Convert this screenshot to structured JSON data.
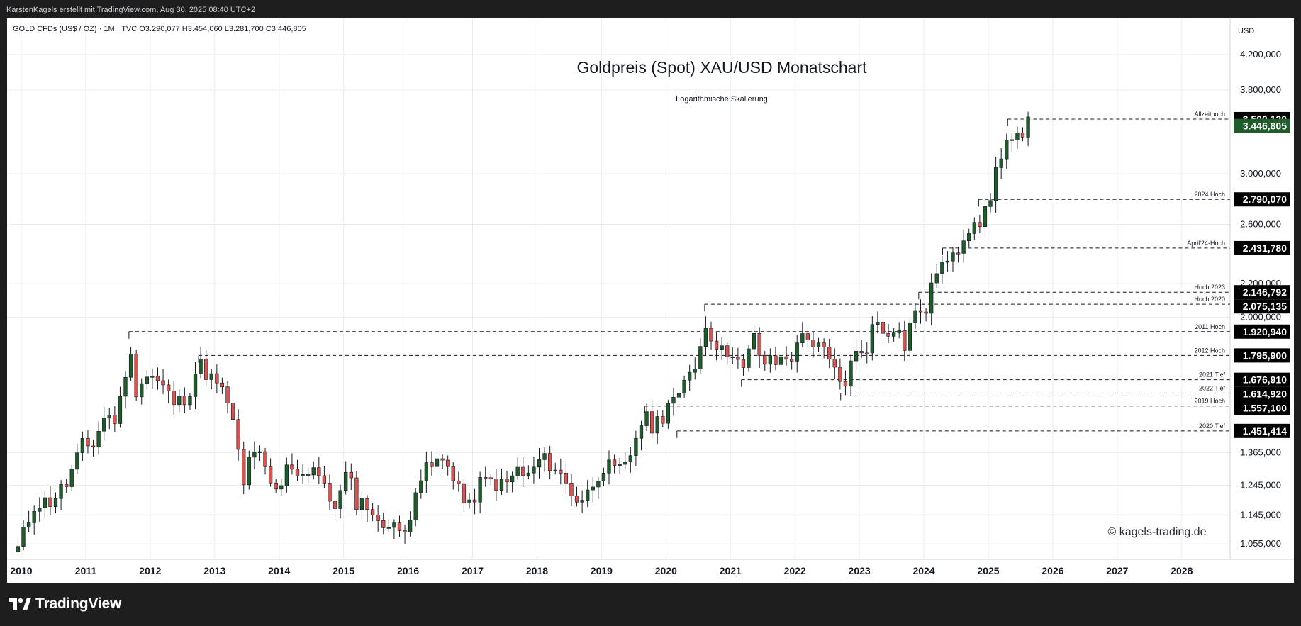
{
  "header": {
    "attribution": "KarstenKagels erstellt mit TradingView.com, Aug 30, 2025 08:40 UTC+2",
    "symbol_info": "GOLD CFDs (US$ / OZ) · 1M · TVC  O3.290,077  H3.454,060  L3.281,700  C3.446,805"
  },
  "footer": {
    "brand": "TradingView"
  },
  "colors": {
    "up": "#1e5c2a",
    "down": "#d9534f",
    "wick": "#131722",
    "grid": "#ececec",
    "current_price_bg": "#1e5c2a",
    "label_bg": "#000000"
  },
  "chart_data": {
    "type": "candlestick",
    "title": "Goldpreis (Spot) XAU/USD Monatschart",
    "subtitle": "Logarithmische Skalierung",
    "watermark": "© kagels-trading.de",
    "currency_label": "USD",
    "y_scale": "log",
    "ylim": [
      1010,
      4650
    ],
    "xlim": [
      2009.78,
      2028.75
    ],
    "x_ticks": [
      "2010",
      "2011",
      "2012",
      "2013",
      "2014",
      "2015",
      "2016",
      "2017",
      "2018",
      "2019",
      "2020",
      "2021",
      "2022",
      "2023",
      "2024",
      "2025",
      "2026",
      "2027",
      "2028"
    ],
    "y_ticks": [
      "4.200,000",
      "3.800,000",
      "3.000,000",
      "2.600,000",
      "2.200,000",
      "2.000,000",
      "1.365,000",
      "1.245,000",
      "1.145,000",
      "1.055,000"
    ],
    "levels": [
      {
        "name": "Allzeithoch",
        "value": 3500.12,
        "label": "3.500,120",
        "start": 2025.3
      },
      {
        "name": "2024 Hoch",
        "value": 2790.07,
        "label": "2.790,070",
        "start": 2024.85
      },
      {
        "name": "April'24-Hoch",
        "value": 2431.78,
        "label": "2.431,780",
        "start": 2024.29
      },
      {
        "name": "Hoch 2023",
        "value": 2146.79,
        "label": "2.146,792",
        "start": 2023.92
      },
      {
        "name": "Hoch 2020",
        "value": 2075.135,
        "label": "2.075,135",
        "start": 2020.6
      },
      {
        "name": "2011 Hoch",
        "value": 1920.94,
        "label": "1.920,940",
        "start": 2011.67
      },
      {
        "name": "2012 Hoch",
        "value": 1795.9,
        "label": "1.795,900",
        "start": 2012.75
      },
      {
        "name": "2021 Tief",
        "value": 1676.91,
        "label": "1.676,910",
        "start": 2021.17
      },
      {
        "name": "2022 Tief",
        "value": 1614.92,
        "label": "1.614,920",
        "start": 2022.71
      },
      {
        "name": "2019 Hoch",
        "value": 1557.1,
        "label": "1.557,100",
        "start": 2019.67
      },
      {
        "name": "2020 Tief",
        "value": 1451.414,
        "label": "1.451,414",
        "start": 2020.17
      }
    ],
    "current_price": {
      "value": 3446.805,
      "label": "3.446,805"
    },
    "anchors": [
      [
        2009.95,
        1040
      ],
      [
        2010.2,
        1180
      ],
      [
        2010.45,
        1190
      ],
      [
        2010.7,
        1250
      ],
      [
        2010.95,
        1390
      ],
      [
        2011.1,
        1390
      ],
      [
        2011.3,
        1520
      ],
      [
        2011.45,
        1500
      ],
      [
        2011.58,
        1620
      ],
      [
        2011.67,
        1880
      ],
      [
        2011.75,
        1620
      ],
      [
        2011.9,
        1690
      ],
      [
        2012.0,
        1700
      ],
      [
        2012.2,
        1640
      ],
      [
        2012.4,
        1560
      ],
      [
        2012.6,
        1620
      ],
      [
        2012.75,
        1760
      ],
      [
        2012.9,
        1700
      ],
      [
        2013.0,
        1665
      ],
      [
        2013.2,
        1580
      ],
      [
        2013.3,
        1460
      ],
      [
        2013.45,
        1240
      ],
      [
        2013.5,
        1310
      ],
      [
        2013.6,
        1390
      ],
      [
        2013.75,
        1320
      ],
      [
        2013.9,
        1210
      ],
      [
        2014.05,
        1250
      ],
      [
        2014.15,
        1330
      ],
      [
        2014.35,
        1280
      ],
      [
        2014.55,
        1320
      ],
      [
        2014.75,
        1200
      ],
      [
        2014.9,
        1180
      ],
      [
        2015.05,
        1290
      ],
      [
        2015.2,
        1190
      ],
      [
        2015.4,
        1180
      ],
      [
        2015.55,
        1100
      ],
      [
        2015.75,
        1140
      ],
      [
        2015.9,
        1060
      ],
      [
        2016.0,
        1115
      ],
      [
        2016.1,
        1240
      ],
      [
        2016.25,
        1290
      ],
      [
        2016.45,
        1330
      ],
      [
        2016.6,
        1320
      ],
      [
        2016.75,
        1270
      ],
      [
        2016.92,
        1150
      ],
      [
        2017.1,
        1250
      ],
      [
        2017.3,
        1260
      ],
      [
        2017.5,
        1240
      ],
      [
        2017.7,
        1300
      ],
      [
        2017.85,
        1270
      ],
      [
        2018.05,
        1340
      ],
      [
        2018.25,
        1320
      ],
      [
        2018.45,
        1250
      ],
      [
        2018.6,
        1200
      ],
      [
        2018.75,
        1200
      ],
      [
        2018.92,
        1280
      ],
      [
        2019.05,
        1320
      ],
      [
        2019.2,
        1290
      ],
      [
        2019.4,
        1310
      ],
      [
        2019.5,
        1410
      ],
      [
        2019.65,
        1510
      ],
      [
        2019.8,
        1470
      ],
      [
        2019.95,
        1520
      ],
      [
        2020.05,
        1590
      ],
      [
        2020.2,
        1580
      ],
      [
        2020.35,
        1720
      ],
      [
        2020.5,
        1780
      ],
      [
        2020.6,
        1970
      ],
      [
        2020.75,
        1880
      ],
      [
        2020.9,
        1790
      ],
      [
        2021.0,
        1850
      ],
      [
        2021.2,
        1710
      ],
      [
        2021.35,
        1900
      ],
      [
        2021.5,
        1760
      ],
      [
        2021.7,
        1760
      ],
      [
        2021.85,
        1790
      ],
      [
        2022.0,
        1800
      ],
      [
        2022.15,
        1940
      ],
      [
        2022.3,
        1840
      ],
      [
        2022.45,
        1810
      ],
      [
        2022.6,
        1720
      ],
      [
        2022.75,
        1640
      ],
      [
        2022.9,
        1780
      ],
      [
        2023.0,
        1820
      ],
      [
        2023.1,
        1830
      ],
      [
        2023.25,
        1990
      ],
      [
        2023.4,
        1920
      ],
      [
        2023.55,
        1960
      ],
      [
        2023.7,
        1850
      ],
      [
        2023.8,
        1990
      ],
      [
        2023.95,
        2040
      ],
      [
        2024.05,
        2050
      ],
      [
        2024.2,
        2300
      ],
      [
        2024.3,
        2320
      ],
      [
        2024.45,
        2350
      ],
      [
        2024.55,
        2450
      ],
      [
        2024.65,
        2560
      ],
      [
        2024.8,
        2660
      ],
      [
        2024.92,
        2620
      ],
      [
        2025.05,
        2850
      ],
      [
        2025.15,
        3100
      ],
      [
        2025.25,
        3280
      ],
      [
        2025.35,
        3290
      ],
      [
        2025.45,
        3300
      ],
      [
        2025.55,
        3290
      ],
      [
        2025.62,
        3447
      ]
    ]
  }
}
